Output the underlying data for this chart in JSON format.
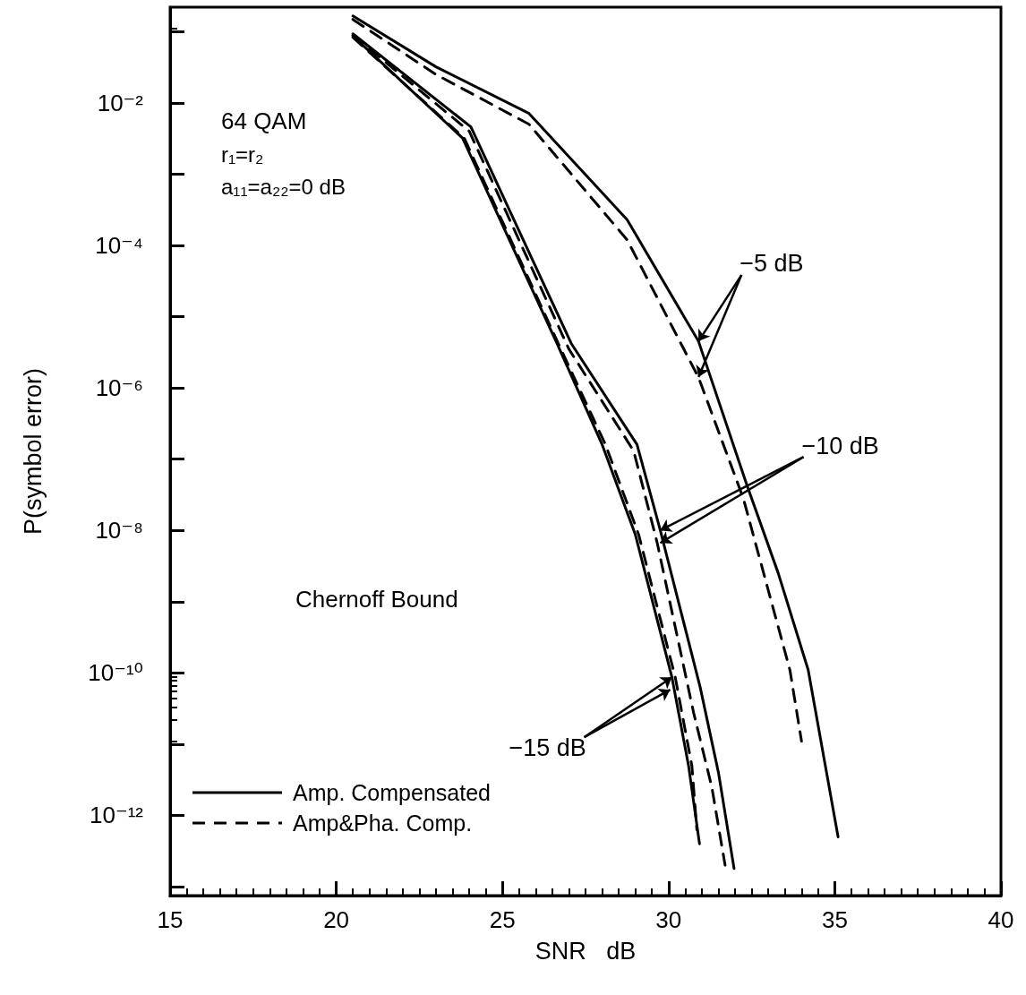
{
  "chart_data": {
    "type": "line",
    "xlabel": "SNR   dB",
    "ylabel": "P(symbol error)",
    "log": "y",
    "grid": false,
    "legend": "bottom left",
    "marker": "none",
    "xlim": [
      15,
      40
    ],
    "xticks": [
      15,
      20,
      25,
      30,
      35,
      40
    ],
    "ylim": [
      7.5e-14,
      0.22
    ],
    "yticks": [
      {
        "value": 0.1,
        "label": null
      },
      {
        "value": 0.01,
        "label": "10⁻²"
      },
      {
        "value": 0.001,
        "label": null
      },
      {
        "value": 0.0001,
        "label": "10⁻⁴"
      },
      {
        "value": 1e-05,
        "label": null
      },
      {
        "value": 1e-06,
        "label": "10⁻⁶"
      },
      {
        "value": 1e-07,
        "label": null
      },
      {
        "value": 1e-08,
        "label": "10⁻⁸"
      },
      {
        "value": 1e-09,
        "label": null
      },
      {
        "value": 1e-10,
        "label": "10⁻¹⁰"
      },
      {
        "value": 1e-11,
        "label": null
      },
      {
        "value": 1e-12,
        "label": "10⁻¹²"
      },
      {
        "value": 1e-13,
        "label": null
      }
    ],
    "series": [
      {
        "name": "Amp. Compensated",
        "color": "#000000",
        "line_style": "solid",
        "x": [
          20.5,
          23,
          25.8,
          28.75,
          30.9,
          32.35,
          33.3,
          34.2,
          35.1
        ],
        "values": [
          0.166,
          0.032,
          0.0071,
          0.00023,
          4.5e-06,
          4.4e-08,
          2.5e-09,
          1.1e-10,
          5e-13
        ]
      },
      {
        "name": "Amp&Pha. Comp.",
        "color": "#000000",
        "line_style": "dashed",
        "x": [
          20.5,
          23,
          25.8,
          28.75,
          30.9,
          32.25,
          33.65,
          34.0
        ],
        "values": [
          0.148,
          0.025,
          0.005,
          0.00012,
          1.4e-06,
          2.8e-08,
          1.1e-10,
          1.1e-11
        ]
      },
      {
        "color": "#000000",
        "line_style": "solid",
        "x": [
          20.5,
          24.05,
          27.07,
          29.05,
          29.75,
          30.95,
          31.5,
          31.97
        ],
        "values": [
          0.093,
          0.0046,
          4.2e-06,
          1.6e-07,
          1e-08,
          6.3e-11,
          4e-12,
          1.8e-13
        ]
      },
      {
        "color": "#000000",
        "line_style": "dashed",
        "x": [
          20.5,
          24.0,
          27.0,
          28.95,
          29.65,
          30.75,
          31.3,
          31.7
        ],
        "values": [
          0.089,
          0.004,
          3.5e-06,
          1.3e-07,
          6.9e-09,
          2.8e-11,
          2.5e-12,
          2e-13
        ]
      },
      {
        "color": "#000000",
        "line_style": "solid",
        "x": [
          20.5,
          23.8,
          26.64,
          28.0,
          29.0,
          30.1,
          30.6,
          30.93
        ],
        "values": [
          0.087,
          0.0032,
          4.2e-06,
          1.6e-07,
          8.7e-09,
          8.7e-11,
          5e-12,
          4e-13
        ]
      },
      {
        "color": "#000000",
        "line_style": "dashed",
        "x": [
          20.5,
          23.85,
          26.7,
          28.1,
          29.1,
          30.2,
          30.7,
          30.85
        ],
        "values": [
          0.083,
          0.0032,
          4e-06,
          1.6e-07,
          8.7e-09,
          8.7e-11,
          5e-12,
          6.3e-13
        ]
      }
    ],
    "annotations": [
      "64 QAM",
      "r₁=r₂",
      "a₁₁=a₂₂=0 dB",
      "Chernoff Bound",
      {
        "text": "−5 dB",
        "x": 30.9,
        "y": 4.5e-06
      },
      {
        "text": "−10 dB",
        "x": 29.75,
        "y": 1e-08
      },
      {
        "text": "−15 dB",
        "x": 30.1,
        "y": 8.7e-11
      }
    ]
  }
}
